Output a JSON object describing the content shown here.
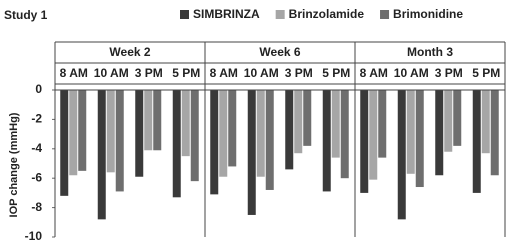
{
  "chart_data": {
    "type": "bar",
    "title": "Study 1",
    "y_label": "IOP change (mmHg)",
    "groups": [
      "Week 2",
      "Week 6",
      "Month 3"
    ],
    "categories": [
      "8 AM",
      "10 AM",
      "3 PM",
      "5 PM",
      "8 AM",
      "10 AM",
      "3 PM",
      "5 PM",
      "8 AM",
      "10 AM",
      "3 PM",
      "5 PM"
    ],
    "series": [
      {
        "name": "SIMBRINZA",
        "color": "#3a3a3a",
        "values": [
          -7.2,
          -8.8,
          -5.9,
          -7.3,
          -7.1,
          -8.5,
          -5.4,
          -6.9,
          -7.0,
          -8.8,
          -5.8,
          -7.0
        ]
      },
      {
        "name": "Brinzolamide",
        "color": "#a6a6a6",
        "values": [
          -5.8,
          -5.6,
          -4.1,
          -4.5,
          -5.9,
          -5.9,
          -4.3,
          -4.6,
          -6.1,
          -5.7,
          -4.2,
          -4.3
        ]
      },
      {
        "name": "Brimonidine",
        "color": "#6e6e6e",
        "values": [
          -5.5,
          -6.9,
          -4.1,
          -6.2,
          -5.2,
          -6.8,
          -3.8,
          -6.0,
          -4.6,
          -6.6,
          -3.8,
          -5.8
        ]
      }
    ],
    "ylim": [
      0,
      -10
    ],
    "yticks": [
      0,
      -2,
      -4,
      -6,
      -8,
      -10
    ]
  }
}
